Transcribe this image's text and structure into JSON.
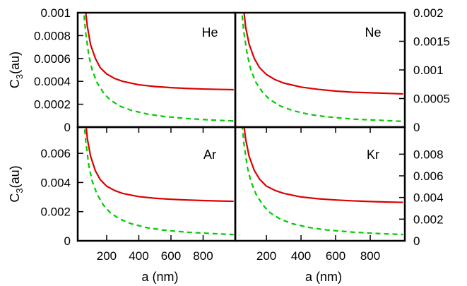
{
  "chart_data": [
    {
      "type": "line",
      "panel_label": "He",
      "xlabel": "",
      "ylabel": "C3(au)",
      "ylabel_main": "C",
      "ylabel_sub": "3",
      "ylabel_rest": "(au)",
      "xlim": [
        20,
        1000
      ],
      "ylim": [
        0,
        0.001
      ],
      "y_axis_side": "left",
      "x_ticks": [],
      "y_ticks": [
        0,
        0.0002,
        0.0004,
        0.0006,
        0.0008,
        0.001
      ],
      "y_tick_labels": [
        "0",
        "0.0002",
        "0.0004",
        "0.0006",
        "0.0008",
        "0.001"
      ],
      "series": [
        {
          "style": "solid",
          "color": "#dd0000",
          "x": [
            60,
            80,
            100,
            130,
            160,
            200,
            250,
            300,
            400,
            500,
            600,
            700,
            800,
            900,
            990
          ],
          "y": [
            0.00112,
            0.00088,
            0.00072,
            0.0006,
            0.00052,
            0.000465,
            0.000425,
            0.0004,
            0.00037,
            0.000355,
            0.000345,
            0.000338,
            0.000333,
            0.00033,
            0.000327
          ]
        },
        {
          "style": "dashed",
          "color": "#00cc00",
          "x": [
            55,
            70,
            90,
            110,
            140,
            180,
            220,
            280,
            350,
            450,
            550,
            700,
            850,
            990
          ],
          "y": [
            0.00105,
            0.00082,
            0.00062,
            0.0005,
            0.00039,
            0.0003,
            0.00024,
            0.000185,
            0.000148,
            0.000115,
            9.4e-05,
            7.5e-05,
            6.2e-05,
            5.4e-05
          ]
        }
      ]
    },
    {
      "type": "line",
      "panel_label": "Ne",
      "xlabel": "",
      "ylabel": "",
      "xlim": [
        20,
        1000
      ],
      "ylim": [
        0,
        0.002
      ],
      "y_axis_side": "right",
      "x_ticks": [],
      "y_ticks": [
        0,
        0.0005,
        0.001,
        0.0015,
        0.002
      ],
      "y_tick_labels": [
        "0",
        "0.0005",
        "0.001",
        "0.0015",
        "0.002"
      ],
      "series": [
        {
          "style": "solid",
          "color": "#dd0000",
          "x": [
            60,
            80,
            100,
            130,
            160,
            200,
            250,
            300,
            400,
            500,
            600,
            700,
            800,
            900,
            990
          ],
          "y": [
            0.0023,
            0.00175,
            0.00145,
            0.0012,
            0.00104,
            0.00092,
            0.00083,
            0.00077,
            0.0007,
            0.00066,
            0.00063,
            0.00061,
            0.0006,
            0.00059,
            0.00058
          ]
        },
        {
          "style": "dashed",
          "color": "#00cc00",
          "x": [
            55,
            70,
            90,
            110,
            140,
            180,
            220,
            280,
            350,
            450,
            550,
            700,
            850,
            990
          ],
          "y": [
            0.0021,
            0.00165,
            0.00126,
            0.001,
            0.00078,
            0.0006,
            0.00048,
            0.00037,
            0.00029,
            0.00022,
            0.00018,
            0.00014,
            0.00012,
            0.0001
          ]
        }
      ]
    },
    {
      "type": "line",
      "panel_label": "Ar",
      "xlabel": "a (nm)",
      "ylabel": "C3(au)",
      "ylabel_main": "C",
      "ylabel_sub": "3",
      "ylabel_rest": "(au)",
      "xlim": [
        20,
        1000
      ],
      "ylim": [
        0,
        0.0078
      ],
      "y_axis_side": "left",
      "x_ticks": [
        200,
        400,
        600,
        800
      ],
      "x_tick_labels": [
        "200",
        "400",
        "600",
        "800"
      ],
      "y_ticks": [
        0,
        0.002,
        0.004,
        0.006
      ],
      "y_tick_labels": [
        "0",
        "0.002",
        "0.004",
        "0.006"
      ],
      "series": [
        {
          "style": "solid",
          "color": "#dd0000",
          "x": [
            60,
            80,
            100,
            130,
            160,
            200,
            250,
            300,
            400,
            500,
            600,
            700,
            800,
            900,
            990
          ],
          "y": [
            0.0092,
            0.007,
            0.0058,
            0.0048,
            0.0042,
            0.00375,
            0.00345,
            0.00325,
            0.00303,
            0.00292,
            0.00285,
            0.0028,
            0.00276,
            0.00273,
            0.00271
          ]
        },
        {
          "style": "dashed",
          "color": "#00cc00",
          "x": [
            55,
            70,
            90,
            110,
            140,
            180,
            220,
            280,
            350,
            450,
            550,
            700,
            850,
            990
          ],
          "y": [
            0.0088,
            0.0068,
            0.0051,
            0.0041,
            0.0032,
            0.00245,
            0.00195,
            0.0015,
            0.00118,
            0.0009,
            0.00074,
            0.00059,
            0.0005,
            0.00043
          ]
        }
      ]
    },
    {
      "type": "line",
      "panel_label": "Kr",
      "xlabel": "a (nm)",
      "ylabel": "",
      "xlim": [
        20,
        1000
      ],
      "ylim": [
        0,
        0.0105
      ],
      "y_axis_side": "right",
      "x_ticks": [
        200,
        400,
        600,
        800
      ],
      "x_tick_labels": [
        "200",
        "400",
        "600",
        "800"
      ],
      "y_ticks": [
        0,
        0.002,
        0.004,
        0.006,
        0.008
      ],
      "y_tick_labels": [
        "0",
        "0.002",
        "0.004",
        "0.006",
        "0.008"
      ],
      "series": [
        {
          "style": "solid",
          "color": "#dd0000",
          "x": [
            60,
            80,
            100,
            130,
            160,
            200,
            250,
            300,
            400,
            500,
            600,
            700,
            800,
            900,
            990
          ],
          "y": [
            0.012,
            0.0094,
            0.0078,
            0.0065,
            0.0057,
            0.00505,
            0.00465,
            0.00438,
            0.00405,
            0.00388,
            0.00377,
            0.00369,
            0.00363,
            0.00358,
            0.00355
          ]
        },
        {
          "style": "dashed",
          "color": "#00cc00",
          "x": [
            55,
            70,
            90,
            110,
            140,
            180,
            220,
            280,
            350,
            450,
            550,
            700,
            850,
            990
          ],
          "y": [
            0.0115,
            0.009,
            0.0068,
            0.0055,
            0.0043,
            0.0033,
            0.0026,
            0.002,
            0.00158,
            0.00122,
            0.001,
            0.0008,
            0.00067,
            0.00058
          ]
        }
      ]
    }
  ]
}
